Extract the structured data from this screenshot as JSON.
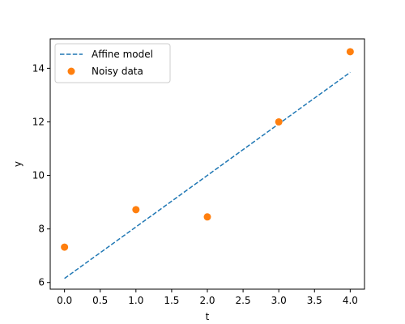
{
  "chart_data": {
    "type": "line",
    "xlabel": "t",
    "ylabel": "y",
    "xlim": [
      -0.2,
      4.2
    ],
    "ylim": [
      5.75,
      15.1
    ],
    "xticks": [
      "0.0",
      "0.5",
      "1.0",
      "1.5",
      "2.0",
      "2.5",
      "3.0",
      "3.5",
      "4.0"
    ],
    "yticks": [
      "6",
      "8",
      "10",
      "12",
      "14"
    ],
    "grid": false,
    "legend_position": "top-left",
    "series": [
      {
        "name": "Affine model",
        "kind": "line",
        "style": "dashed",
        "color": "#1f77b4",
        "x": [
          0,
          4
        ],
        "y": [
          6.15,
          13.85
        ]
      },
      {
        "name": "Noisy data",
        "kind": "scatter",
        "color": "#ff7f0e",
        "x": [
          0,
          1,
          2,
          3,
          4
        ],
        "y": [
          7.32,
          8.72,
          8.45,
          12.0,
          14.62
        ]
      }
    ]
  }
}
